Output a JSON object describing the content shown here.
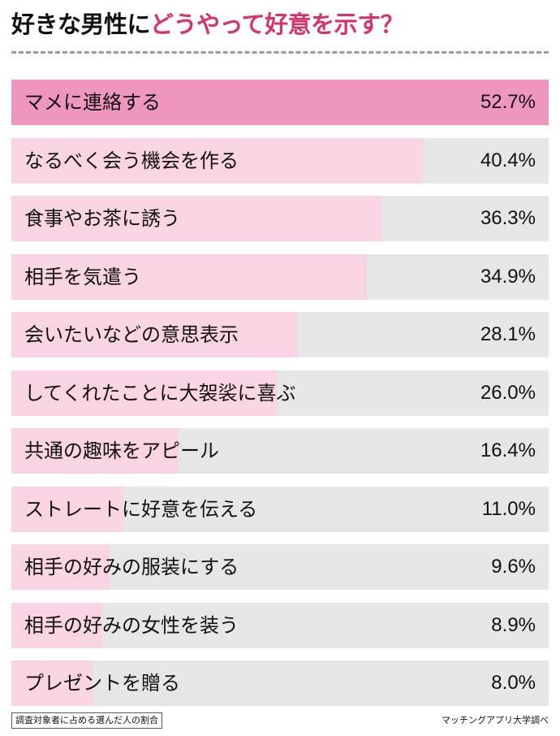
{
  "title": {
    "main": "好きな男性に",
    "accent": "どうやって好意を示す？"
  },
  "footnote": "調査対象者に占める選んだ人の割合",
  "source": "マッチングアプリ大学調べ",
  "colors": {
    "accent": "#d6336c",
    "top_bar": "#ef96bf",
    "bar": "#f9d4e4",
    "track": "#e6e6e6"
  },
  "chart_data": {
    "type": "bar",
    "orientation": "horizontal",
    "unit": "%",
    "xlim": [
      0,
      52.7
    ],
    "categories": [
      "マメに連絡する",
      "なるべく会う機会を作る",
      "食事やお茶に誘う",
      "相手を気遣う",
      "会いたいなどの意思表示",
      "してくれたことに大袈裟に喜ぶ",
      "共通の趣味をアピール",
      "ストレートに好意を伝える",
      "相手の好みの服装にする",
      "相手の好みの女性を装う",
      "プレゼントを贈る"
    ],
    "values": [
      52.7,
      40.4,
      36.3,
      34.9,
      28.1,
      26.0,
      16.4,
      11.0,
      9.6,
      8.9,
      8.0
    ],
    "value_labels": [
      "52.7%",
      "40.4%",
      "36.3%",
      "34.9%",
      "28.1%",
      "26.0%",
      "16.4%",
      "11.0%",
      "9.6%",
      "8.9%",
      "8.0%"
    ]
  }
}
